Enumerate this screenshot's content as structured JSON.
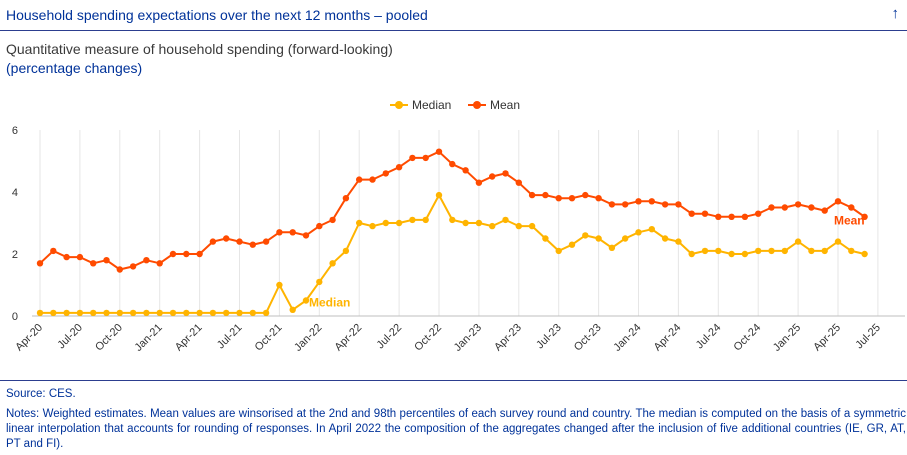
{
  "header": {
    "title": "Household spending expectations over the next 12 months – pooled",
    "collapse_icon": "arrow-up-icon"
  },
  "subtitle": {
    "line1": "Quantitative measure of household spending (forward-looking)",
    "line2": "(percentage changes)"
  },
  "chart_data": {
    "type": "line",
    "ylim": [
      0,
      6
    ],
    "yticks": [
      0,
      2,
      4,
      6
    ],
    "xtick_labels": [
      "Apr-20",
      "Jul-20",
      "Oct-20",
      "Jan-21",
      "Apr-21",
      "Jul-21",
      "Oct-21",
      "Jan-22",
      "Apr-22",
      "Jul-22",
      "Oct-22",
      "Jan-23",
      "Apr-23",
      "Jul-23",
      "Oct-23",
      "Jan-24",
      "Apr-24",
      "Jul-24",
      "Oct-24",
      "Jan-25",
      "Apr-25",
      "Jul-25"
    ],
    "x": [
      "2020-04",
      "2020-05",
      "2020-06",
      "2020-07",
      "2020-08",
      "2020-09",
      "2020-10",
      "2020-11",
      "2020-12",
      "2021-01",
      "2021-02",
      "2021-03",
      "2021-04",
      "2021-05",
      "2021-06",
      "2021-07",
      "2021-08",
      "2021-09",
      "2021-10",
      "2021-11",
      "2021-12",
      "2022-01",
      "2022-02",
      "2022-03",
      "2022-04",
      "2022-05",
      "2022-06",
      "2022-07",
      "2022-08",
      "2022-09",
      "2022-10",
      "2022-11",
      "2022-12",
      "2023-01",
      "2023-02",
      "2023-03",
      "2023-04",
      "2023-05",
      "2023-06",
      "2023-07",
      "2023-08",
      "2023-09",
      "2023-10",
      "2023-11",
      "2023-12",
      "2024-01",
      "2024-02",
      "2024-03",
      "2024-04",
      "2024-05",
      "2024-06",
      "2024-07",
      "2024-08",
      "2024-09",
      "2024-10",
      "2024-11",
      "2024-12",
      "2025-01",
      "2025-02",
      "2025-03",
      "2025-04",
      "2025-05",
      "2025-06"
    ],
    "grid": "vertical",
    "legend_position": "top-center",
    "series": [
      {
        "name": "Median",
        "color": "#ffb400",
        "values": [
          0.1,
          0.1,
          0.1,
          0.1,
          0.1,
          0.1,
          0.1,
          0.1,
          0.1,
          0.1,
          0.1,
          0.1,
          0.1,
          0.1,
          0.1,
          0.1,
          0.1,
          0.1,
          1.0,
          0.2,
          0.5,
          1.1,
          1.7,
          2.1,
          3.0,
          2.9,
          3.0,
          3.0,
          3.1,
          3.1,
          3.9,
          3.1,
          3.0,
          3.0,
          2.9,
          3.1,
          2.9,
          2.9,
          2.5,
          2.1,
          2.3,
          2.6,
          2.5,
          2.2,
          2.5,
          2.7,
          2.8,
          2.5,
          2.4,
          2.0,
          2.1,
          2.1,
          2.0,
          2.0,
          2.1,
          2.1,
          2.1,
          2.4,
          2.1,
          2.1,
          2.4,
          2.1,
          2.0
        ]
      },
      {
        "name": "Mean",
        "color": "#ff4b00",
        "values": [
          1.7,
          2.1,
          1.9,
          1.9,
          1.7,
          1.8,
          1.5,
          1.6,
          1.8,
          1.7,
          2.0,
          2.0,
          2.0,
          2.4,
          2.5,
          2.4,
          2.3,
          2.4,
          2.7,
          2.7,
          2.6,
          2.9,
          3.1,
          3.8,
          4.4,
          4.4,
          4.6,
          4.8,
          5.1,
          5.1,
          5.3,
          4.9,
          4.7,
          4.3,
          4.5,
          4.6,
          4.3,
          3.9,
          3.9,
          3.8,
          3.8,
          3.9,
          3.8,
          3.6,
          3.6,
          3.7,
          3.7,
          3.6,
          3.6,
          3.3,
          3.3,
          3.2,
          3.2,
          3.2,
          3.3,
          3.5,
          3.5,
          3.6,
          3.5,
          3.4,
          3.7,
          3.5,
          3.2
        ]
      }
    ],
    "annotations": [
      {
        "text": "Median",
        "series": "Median",
        "point_index": 20
      },
      {
        "text": "Mean",
        "series": "Mean",
        "point_index": 61
      }
    ]
  },
  "footer": {
    "source": "Source: CES.",
    "notes": "Notes: Weighted estimates. Mean values are winsorised at the 2nd and 98th percentiles of each survey round and country. The median is computed on the basis of a symmetric linear interpolation that accounts for rounding of responses. In April 2022 the composition of the aggregates changed after the inclusion of five additional countries (IE, GR, AT, PT and FI)."
  }
}
